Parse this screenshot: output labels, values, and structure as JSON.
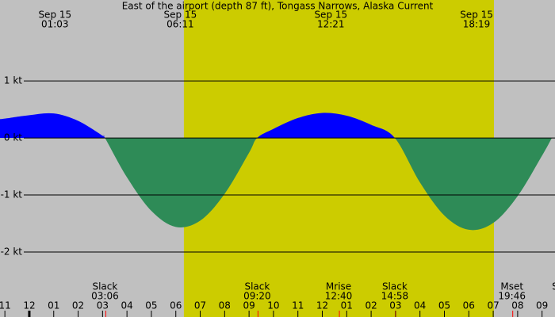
{
  "chart_data": {
    "type": "area",
    "title": "East of the airport (depth 87 ft), Tongass Narrows, Alaska Current",
    "x": [
      -1.2,
      -1,
      0,
      1,
      2,
      3,
      3.1,
      4,
      5,
      6,
      7,
      8,
      9,
      9.33,
      10,
      11,
      12,
      13,
      14,
      14.97,
      16,
      17,
      18,
      19,
      20,
      21,
      21.4
    ],
    "series": [
      {
        "values": [
          0.33,
          0.34,
          0.4,
          0.43,
          0.3,
          0.04,
          0,
          -0.69,
          -1.28,
          -1.56,
          -1.45,
          -0.98,
          -0.26,
          0,
          0.16,
          0.35,
          0.44,
          0.39,
          0.23,
          0,
          -0.78,
          -1.36,
          -1.61,
          -1.49,
          -1.02,
          -0.31,
          0
        ],
        "color": "#0000ff",
        "negative_color": "#2e8b57"
      }
    ],
    "xlim": [
      -1.2,
      21.53
    ],
    "ylim": [
      -3.14,
      2.42
    ],
    "yticks": [
      {
        "value": 1,
        "label": "1 kt"
      },
      {
        "value": 0,
        "label": "0 kt"
      },
      {
        "value": -1,
        "label": "-1 kt"
      },
      {
        "value": -2,
        "label": "-2 kt"
      }
    ],
    "xticks": [
      {
        "value": -1,
        "label": "11"
      },
      {
        "value": 0,
        "label": "12"
      },
      {
        "value": 1,
        "label": "01"
      },
      {
        "value": 2,
        "label": "02"
      },
      {
        "value": 3,
        "label": "03"
      },
      {
        "value": 4,
        "label": "04"
      },
      {
        "value": 5,
        "label": "05"
      },
      {
        "value": 6,
        "label": "06"
      },
      {
        "value": 7,
        "label": "07"
      },
      {
        "value": 8,
        "label": "08"
      },
      {
        "value": 9,
        "label": "09"
      },
      {
        "value": 10,
        "label": "10"
      },
      {
        "value": 11,
        "label": "11"
      },
      {
        "value": 12,
        "label": "12"
      },
      {
        "value": 13,
        "label": "01"
      },
      {
        "value": 14,
        "label": "02"
      },
      {
        "value": 15,
        "label": "03"
      },
      {
        "value": 16,
        "label": "04"
      },
      {
        "value": 17,
        "label": "05"
      },
      {
        "value": 18,
        "label": "06"
      },
      {
        "value": 19,
        "label": "07"
      },
      {
        "value": 20,
        "label": "08"
      },
      {
        "value": 21,
        "label": "09"
      }
    ],
    "daylight": [
      6.33,
      19.03
    ],
    "top_labels": [
      {
        "date": "Sep 15",
        "time": "01:03"
      },
      {
        "date": "Sep 15",
        "time": "06:11"
      },
      {
        "date": "Sep 15",
        "time": "12:21"
      },
      {
        "date": "Sep 15",
        "time": "18:19"
      }
    ],
    "events": [
      {
        "label": "Slack",
        "time": "03:06"
      },
      {
        "label": "Slack",
        "time": "09:20"
      },
      {
        "label": "Mrise",
        "time": "12:40"
      },
      {
        "label": "Slack",
        "time": "14:58"
      },
      {
        "label": "Mset",
        "time": "19:46"
      },
      {
        "label": "Slack"
      }
    ]
  }
}
